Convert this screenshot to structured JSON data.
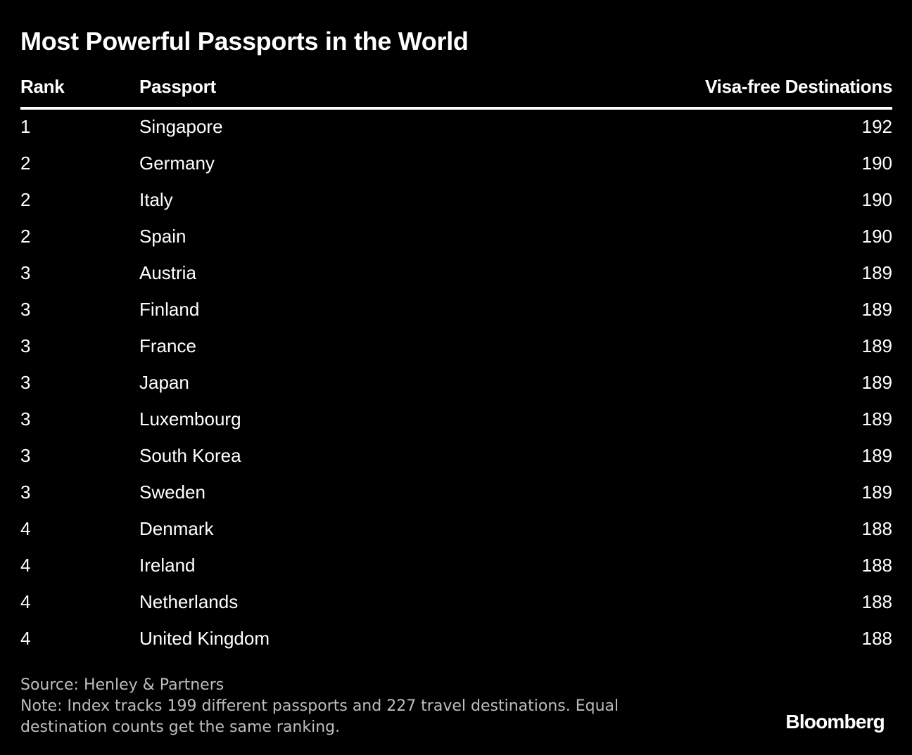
{
  "chart_data": {
    "type": "table",
    "title": "Most Powerful Passports in the World",
    "columns": [
      "Rank",
      "Passport",
      "Visa-free Destinations"
    ],
    "rows": [
      {
        "rank": "1",
        "passport": "Singapore",
        "visa_free": "192"
      },
      {
        "rank": "2",
        "passport": "Germany",
        "visa_free": "190"
      },
      {
        "rank": "2",
        "passport": "Italy",
        "visa_free": "190"
      },
      {
        "rank": "2",
        "passport": "Spain",
        "visa_free": "190"
      },
      {
        "rank": "3",
        "passport": "Austria",
        "visa_free": "189"
      },
      {
        "rank": "3",
        "passport": "Finland",
        "visa_free": "189"
      },
      {
        "rank": "3",
        "passport": "France",
        "visa_free": "189"
      },
      {
        "rank": "3",
        "passport": "Japan",
        "visa_free": "189"
      },
      {
        "rank": "3",
        "passport": "Luxembourg",
        "visa_free": "189"
      },
      {
        "rank": "3",
        "passport": "South Korea",
        "visa_free": "189"
      },
      {
        "rank": "3",
        "passport": "Sweden",
        "visa_free": "189"
      },
      {
        "rank": "4",
        "passport": "Denmark",
        "visa_free": "188"
      },
      {
        "rank": "4",
        "passport": "Ireland",
        "visa_free": "188"
      },
      {
        "rank": "4",
        "passport": "Netherlands",
        "visa_free": "188"
      },
      {
        "rank": "4",
        "passport": "United Kingdom",
        "visa_free": "188"
      }
    ],
    "source": "Source: Henley & Partners",
    "note": "Note: Index tracks 199 different passports and 227 travel destinations. Equal destination counts get the same ranking.",
    "brand": "Bloomberg"
  },
  "colors": {
    "background": "#000000",
    "text": "#ffffff",
    "footnote": "#bdbdbd"
  }
}
